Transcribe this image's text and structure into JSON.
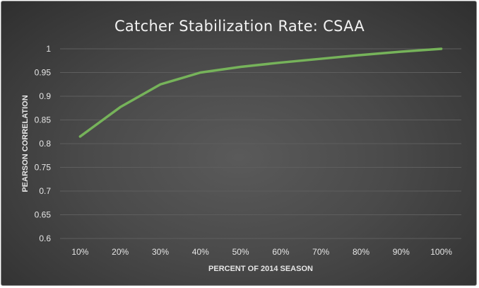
{
  "chart_data": {
    "type": "line",
    "title": "Catcher Stabilization Rate: CSAA",
    "xlabel": "PERCENT OF 2014 SEASON",
    "ylabel": "PEARSON CORRELATION",
    "categories": [
      "10%",
      "20%",
      "30%",
      "40%",
      "50%",
      "60%",
      "70%",
      "80%",
      "90%",
      "100%"
    ],
    "series": [
      {
        "values": [
          0.815,
          0.877,
          0.925,
          0.95,
          0.962,
          0.971,
          0.979,
          0.987,
          0.994,
          1.0
        ]
      }
    ],
    "y_ticks": [
      "0.6",
      "0.65",
      "0.7",
      "0.75",
      "0.8",
      "0.85",
      "0.9",
      "0.95",
      "1"
    ],
    "ylim": [
      0.6,
      1.0
    ],
    "grid": true,
    "legend": "none",
    "colors": {
      "line": "#76b35a",
      "gridline": "#5e5e5e"
    }
  }
}
